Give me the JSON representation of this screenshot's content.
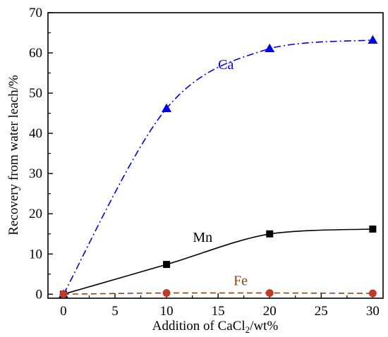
{
  "chart_data": {
    "type": "line",
    "xlabel": "Addition of CaCl2/wt%",
    "ylabel": "Recovery from water leach/%",
    "xlim": [
      -1.5,
      31
    ],
    "ylim": [
      -1,
      70
    ],
    "xticks": [
      0,
      5,
      10,
      15,
      20,
      25,
      30
    ],
    "yticks": [
      0,
      10,
      20,
      30,
      40,
      50,
      60,
      70
    ],
    "grid": false,
    "legend": "none",
    "series": [
      {
        "name": "Ca",
        "x": [
          0,
          10,
          20,
          30
        ],
        "values": [
          0,
          46.2,
          61.1,
          63.2
        ],
        "color": "#0000ee",
        "marker": "triangle",
        "line_style": "dash-dot"
      },
      {
        "name": "Mn",
        "x": [
          0,
          10,
          20,
          30
        ],
        "values": [
          0,
          7.4,
          15.0,
          16.2
        ],
        "color": "#000000",
        "marker": "square",
        "line_style": "solid"
      },
      {
        "name": "Fe",
        "x": [
          0,
          10,
          20,
          30
        ],
        "values": [
          0,
          0.3,
          0.3,
          0.2
        ],
        "color": "#8b4513",
        "marker_color": "#c0392b",
        "marker": "circle",
        "line_style": "dashed"
      }
    ]
  }
}
